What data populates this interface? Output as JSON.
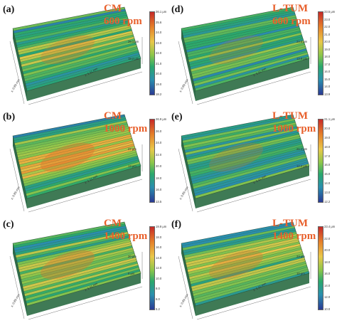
{
  "panels": [
    {
      "letter": "(a)",
      "method": "CM",
      "speed": "600 rpm",
      "scale": [
        "26.1 μm",
        "25.6",
        "24.0",
        "23.0",
        "22.0",
        "21.0",
        "20.0",
        "19.0",
        "18.2"
      ],
      "zticks": [
        "26.1 μm",
        "18.2 μm"
      ],
      "xlabel": "x: 0.89 mm",
      "ylabel": "x: 1.11 mm"
    },
    {
      "letter": "(d)",
      "method": "L-TUM",
      "speed": "600 rpm",
      "scale": [
        "23.5 μm",
        "23.0",
        "22.0",
        "21.0",
        "20.0",
        "19.0",
        "18.0",
        "17.0",
        "16.0",
        "15.0",
        "14.0",
        "13.9"
      ],
      "zticks": [
        "23.5 μm",
        "13.9 μm"
      ],
      "xlabel": "x: 0.89 mm",
      "ylabel": "x: 1.11 mm"
    },
    {
      "letter": "(b)",
      "method": "CM",
      "speed": "1000 rpm",
      "scale": [
        "26.9 μm",
        "26.0",
        "24.0",
        "22.0",
        "20.0",
        "18.0",
        "16.0",
        "13.5"
      ],
      "zticks": [
        "27 μm",
        "13 μm"
      ],
      "xlabel": "x: 0.89 mm",
      "ylabel": "x: 1.11 mm"
    },
    {
      "letter": "(e)",
      "method": "L-TUM",
      "speed": "1000 rpm",
      "scale": [
        "21.1 μm",
        "20.0",
        "19.0",
        "18.0",
        "17.0",
        "16.0",
        "15.0",
        "14.0",
        "13.0",
        "12.2"
      ],
      "zticks": [
        "21.1 μm",
        "12.2 μm"
      ],
      "xlabel": "x: 0.89 mm",
      "ylabel": "x: 1.11 mm"
    },
    {
      "letter": "(c)",
      "method": "CM",
      "speed": "1400 rpm",
      "scale": [
        "19.9 μm",
        "18.0",
        "16.0",
        "14.0",
        "12.0",
        "10.0",
        "8.0",
        "6.0",
        "5.2"
      ],
      "zticks": [
        "20 μm",
        "5 μm"
      ],
      "xlabel": "x: 0.89 mm",
      "ylabel": "x: 1.11 mm"
    },
    {
      "letter": "(f)",
      "method": "L-TUM",
      "speed": "1400 rpm",
      "scale": [
        "23.4 μm",
        "22.0",
        "20.0",
        "18.0",
        "16.0",
        "14.0",
        "12.0",
        "10.0"
      ],
      "zticks": [
        "23 μm",
        "10 μm"
      ],
      "xlabel": "x: 0.89 mm",
      "ylabel": "x: 1.11 mm"
    }
  ],
  "colors": {
    "label": "#e8602c",
    "high": "#c62a28",
    "low": "#2a3a94"
  }
}
